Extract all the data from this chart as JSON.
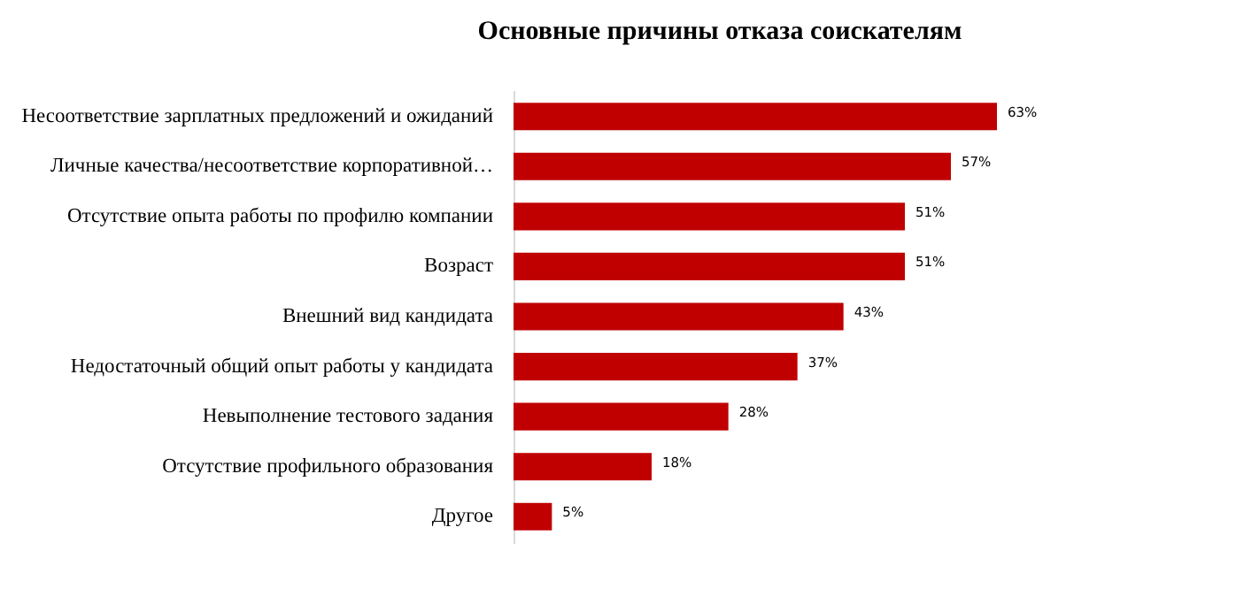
{
  "chart_data": {
    "type": "bar",
    "orientation": "horizontal",
    "title": "Основные причины отказа соискателям",
    "categories": [
      "Несоответствие зарплатных предложений  и ожиданий",
      "Личные качества/несоответствие  корпоративной…",
      "Отсутствие опыта работы по профилю компании",
      "Возраст",
      "Внешний вид кандидата",
      "Недостаточный общий опыт работы у кандидата",
      "Невыполнение тестового задания",
      "Отсутствие профильного образования",
      "Другое"
    ],
    "values": [
      63,
      57,
      51,
      51,
      43,
      37,
      28,
      18,
      5
    ],
    "value_labels": [
      "63%",
      "57%",
      "51%",
      "51%",
      "43%",
      "37%",
      "28%",
      "18%",
      "5%"
    ],
    "color": "#c00000"
  }
}
